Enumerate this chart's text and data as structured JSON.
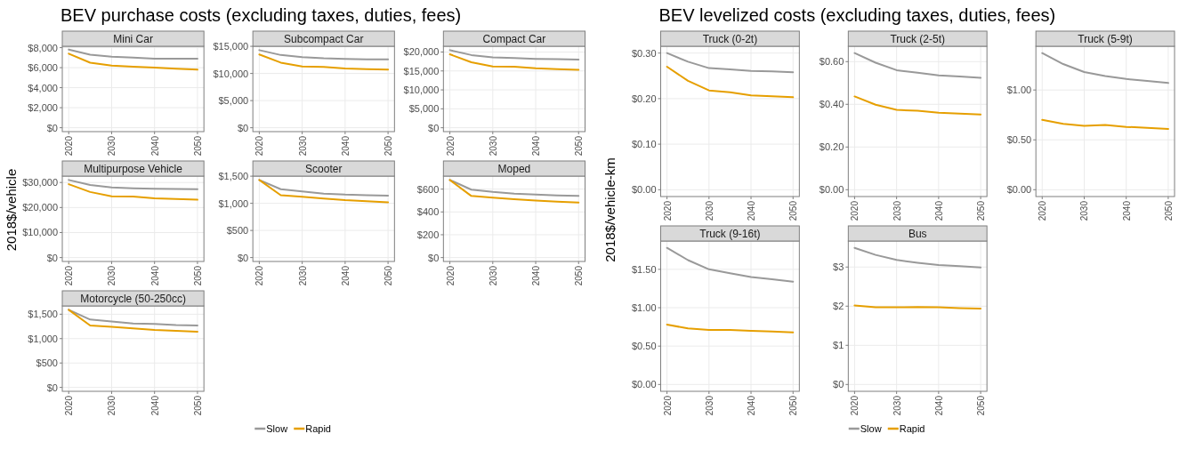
{
  "chart_data": [
    {
      "type": "line",
      "subtitle": "BEV purchase costs (excluding taxes, duties, fees)",
      "title": "Mini Car",
      "x": [
        2020,
        2025,
        2030,
        2035,
        2040,
        2045,
        2050
      ],
      "xlim": [
        2018.5,
        2051.5
      ],
      "xticks": [
        2020,
        2030,
        2040,
        2050
      ],
      "ylim": [
        -390,
        8140
      ],
      "yticks": [
        {
          "value": 0,
          "label": "$0"
        },
        {
          "value": 2000,
          "label": "$2,000"
        },
        {
          "value": 4000,
          "label": "$4,000"
        },
        {
          "value": 6000,
          "label": "$6,000"
        },
        {
          "value": 8000,
          "label": "$8,000"
        }
      ],
      "grid": true,
      "series": [
        {
          "color": "#999999",
          "values": [
            7800,
            7300,
            7100,
            7000,
            6900,
            6900,
            6900
          ]
        },
        {
          "color": "#e69f00",
          "values": [
            7400,
            6500,
            6200,
            6100,
            6000,
            5900,
            5800
          ]
        }
      ]
    },
    {
      "type": "line",
      "title": "Subcompact Car",
      "x": [
        2020,
        2025,
        2030,
        2035,
        2040,
        2045,
        2050
      ],
      "xlim": [
        2018.5,
        2051.5
      ],
      "xticks": [
        2020,
        2030,
        2040,
        2050
      ],
      "ylim": [
        -715,
        15015
      ],
      "yticks": [
        {
          "value": 0,
          "label": "$0"
        },
        {
          "value": 5000,
          "label": "$5,000"
        },
        {
          "value": 10000,
          "label": "$10,000"
        },
        {
          "value": 15000,
          "label": "$15,000"
        }
      ],
      "grid": true,
      "series": [
        {
          "color": "#999999",
          "values": [
            14300,
            13400,
            13000,
            12800,
            12700,
            12600,
            12600
          ]
        },
        {
          "color": "#e69f00",
          "values": [
            13500,
            12000,
            11300,
            11200,
            10900,
            10800,
            10700
          ]
        }
      ]
    },
    {
      "type": "line",
      "title": "Compact Car",
      "x": [
        2020,
        2025,
        2030,
        2035,
        2040,
        2045,
        2050
      ],
      "xlim": [
        2018.5,
        2051.5
      ],
      "xticks": [
        2020,
        2030,
        2040,
        2050
      ],
      "ylim": [
        -1025,
        21525
      ],
      "yticks": [
        {
          "value": 0,
          "label": "$0"
        },
        {
          "value": 5000,
          "label": "$5,000"
        },
        {
          "value": 10000,
          "label": "$10,000"
        },
        {
          "value": 15000,
          "label": "$15,000"
        },
        {
          "value": 20000,
          "label": "$20,000"
        }
      ],
      "grid": true,
      "series": [
        {
          "color": "#999999",
          "values": [
            20500,
            19200,
            18600,
            18400,
            18200,
            18100,
            18000
          ]
        },
        {
          "color": "#e69f00",
          "values": [
            19400,
            17300,
            16200,
            16100,
            15700,
            15500,
            15300
          ]
        }
      ]
    },
    {
      "type": "line",
      "title": "Multipurpose Vehicle",
      "ylabel": "2018$/vehicle",
      "x": [
        2020,
        2025,
        2030,
        2035,
        2040,
        2045,
        2050
      ],
      "xlim": [
        2018.5,
        2051.5
      ],
      "xticks": [
        2020,
        2030,
        2040,
        2050
      ],
      "ylim": [
        -1550,
        32550
      ],
      "yticks": [
        {
          "value": 0,
          "label": "$0"
        },
        {
          "value": 10000,
          "label": "$10,000"
        },
        {
          "value": 20000,
          "label": "$20,000"
        },
        {
          "value": 30000,
          "label": "$30,000"
        }
      ],
      "grid": true,
      "series": [
        {
          "color": "#999999",
          "values": [
            31000,
            29000,
            28000,
            27700,
            27500,
            27400,
            27300
          ]
        },
        {
          "color": "#e69f00",
          "values": [
            29300,
            26200,
            24500,
            24400,
            23700,
            23400,
            23100
          ]
        }
      ]
    },
    {
      "type": "line",
      "title": "Scooter",
      "x": [
        2020,
        2025,
        2030,
        2035,
        2040,
        2045,
        2050
      ],
      "xlim": [
        2018.5,
        2051.5
      ],
      "xticks": [
        2020,
        2030,
        2040,
        2050
      ],
      "ylim": [
        -72,
        1502
      ],
      "yticks": [
        {
          "value": 0,
          "label": "$0"
        },
        {
          "value": 500,
          "label": "$500"
        },
        {
          "value": 1000,
          "label": "$1,000"
        },
        {
          "value": 1500,
          "label": "$1,500"
        }
      ],
      "grid": true,
      "series": [
        {
          "color": "#999999",
          "values": [
            1430,
            1260,
            1220,
            1180,
            1160,
            1150,
            1140
          ]
        },
        {
          "color": "#e69f00",
          "values": [
            1430,
            1150,
            1120,
            1090,
            1060,
            1040,
            1020
          ]
        }
      ]
    },
    {
      "type": "line",
      "title": "Moped",
      "x": [
        2020,
        2025,
        2030,
        2035,
        2040,
        2045,
        2050
      ],
      "xlim": [
        2018.5,
        2051.5
      ],
      "xticks": [
        2020,
        2030,
        2040,
        2050
      ],
      "ylim": [
        -34,
        714
      ],
      "yticks": [
        {
          "value": 0,
          "label": "$0"
        },
        {
          "value": 200,
          "label": "$200"
        },
        {
          "value": 400,
          "label": "$400"
        },
        {
          "value": 600,
          "label": "$600"
        }
      ],
      "grid": true,
      "series": [
        {
          "color": "#999999",
          "values": [
            680,
            595,
            575,
            560,
            552,
            545,
            540
          ]
        },
        {
          "color": "#e69f00",
          "values": [
            680,
            540,
            525,
            512,
            500,
            490,
            482
          ]
        }
      ]
    },
    {
      "type": "line",
      "title": "Motorcycle (50-250cc)",
      "legend": "bottom",
      "x": [
        2020,
        2025,
        2030,
        2035,
        2040,
        2045,
        2050
      ],
      "xlim": [
        2018.5,
        2051.5
      ],
      "xticks": [
        2020,
        2030,
        2040,
        2050
      ],
      "ylim": [
        -80,
        1670
      ],
      "yticks": [
        {
          "value": 0,
          "label": "$0"
        },
        {
          "value": 500,
          "label": "$500"
        },
        {
          "value": 1000,
          "label": "$1,000"
        },
        {
          "value": 1500,
          "label": "$1,500"
        }
      ],
      "grid": true,
      "series": [
        {
          "name": "Slow",
          "color": "#999999",
          "values": [
            1590,
            1390,
            1350,
            1310,
            1300,
            1280,
            1270
          ]
        },
        {
          "name": "Rapid",
          "color": "#e69f00",
          "values": [
            1590,
            1270,
            1240,
            1210,
            1180,
            1160,
            1140
          ]
        }
      ]
    },
    {
      "type": "line",
      "subtitle": "BEV levelized costs (excluding taxes, duties, fees)",
      "title": "Truck (0-2t)",
      "ylabel": "2018$/vehicle-km",
      "x": [
        2020,
        2025,
        2030,
        2035,
        2040,
        2045,
        2050
      ],
      "xlim": [
        2018.5,
        2051.5
      ],
      "xticks": [
        2020,
        2030,
        2040,
        2050
      ],
      "ylim": [
        -0.015,
        0.315
      ],
      "yticks": [
        {
          "value": 0,
          "label": "$0.00"
        },
        {
          "value": 0.1,
          "label": "$0.10"
        },
        {
          "value": 0.2,
          "label": "$0.20"
        },
        {
          "value": 0.3,
          "label": "$0.30"
        }
      ],
      "grid": true,
      "series": [
        {
          "color": "#999999",
          "values": [
            0.3,
            0.281,
            0.267,
            0.264,
            0.261,
            0.26,
            0.258
          ]
        },
        {
          "color": "#e69f00",
          "values": [
            0.27,
            0.239,
            0.218,
            0.214,
            0.207,
            0.205,
            0.203
          ]
        }
      ]
    },
    {
      "type": "line",
      "title": "Truck (2-5t)",
      "x": [
        2020,
        2025,
        2030,
        2035,
        2040,
        2045,
        2050
      ],
      "xlim": [
        2018.5,
        2051.5
      ],
      "xticks": [
        2020,
        2030,
        2040,
        2050
      ],
      "ylim": [
        -0.032,
        0.672
      ],
      "yticks": [
        {
          "value": 0,
          "label": "$0.00"
        },
        {
          "value": 0.2,
          "label": "$0.20"
        },
        {
          "value": 0.4,
          "label": "$0.40"
        },
        {
          "value": 0.6,
          "label": "$0.60"
        }
      ],
      "grid": true,
      "series": [
        {
          "color": "#999999",
          "values": [
            0.64,
            0.595,
            0.56,
            0.548,
            0.536,
            0.53,
            0.524
          ]
        },
        {
          "color": "#e69f00",
          "values": [
            0.437,
            0.398,
            0.374,
            0.37,
            0.361,
            0.356,
            0.352
          ]
        }
      ]
    },
    {
      "type": "line",
      "title": "Truck (5-9t)",
      "x": [
        2020,
        2025,
        2030,
        2035,
        2040,
        2045,
        2050
      ],
      "xlim": [
        2018.5,
        2051.5
      ],
      "xticks": [
        2020,
        2030,
        2040,
        2050
      ],
      "ylim": [
        -0.0685,
        1.4385
      ],
      "yticks": [
        {
          "value": 0,
          "label": "$0.00"
        },
        {
          "value": 0.5,
          "label": "$0.50"
        },
        {
          "value": 1,
          "label": "$1.00"
        }
      ],
      "grid": true,
      "series": [
        {
          "color": "#999999",
          "values": [
            1.37,
            1.26,
            1.18,
            1.14,
            1.11,
            1.09,
            1.07
          ]
        },
        {
          "color": "#e69f00",
          "values": [
            0.7,
            0.66,
            0.64,
            0.65,
            0.63,
            0.62,
            0.61
          ]
        }
      ]
    },
    {
      "type": "line",
      "title": "Truck (9-16t)",
      "x": [
        2020,
        2025,
        2030,
        2035,
        2040,
        2045,
        2050
      ],
      "xlim": [
        2018.5,
        2051.5
      ],
      "xticks": [
        2020,
        2030,
        2040,
        2050
      ],
      "ylim": [
        -0.089,
        1.869
      ],
      "yticks": [
        {
          "value": 0,
          "label": "$0.00"
        },
        {
          "value": 0.5,
          "label": "$0.50"
        },
        {
          "value": 1,
          "label": "$1.00"
        },
        {
          "value": 1.5,
          "label": "$1.50"
        }
      ],
      "grid": true,
      "series": [
        {
          "color": "#999999",
          "values": [
            1.78,
            1.62,
            1.5,
            1.45,
            1.4,
            1.37,
            1.34
          ]
        },
        {
          "color": "#e69f00",
          "values": [
            0.78,
            0.73,
            0.71,
            0.71,
            0.7,
            0.69,
            0.68
          ]
        }
      ]
    },
    {
      "type": "line",
      "title": "Bus",
      "legend": "bottom",
      "x": [
        2020,
        2025,
        2030,
        2035,
        2040,
        2045,
        2050
      ],
      "xlim": [
        2018.5,
        2051.5
      ],
      "xticks": [
        2020,
        2030,
        2040,
        2050
      ],
      "ylim": [
        -0.1745,
        3.6645
      ],
      "yticks": [
        {
          "value": 0,
          "label": "$0"
        },
        {
          "value": 1,
          "label": "$1"
        },
        {
          "value": 2,
          "label": "$2"
        },
        {
          "value": 3,
          "label": "$3"
        }
      ],
      "grid": true,
      "series": [
        {
          "name": "Slow",
          "color": "#999999",
          "values": [
            3.49,
            3.31,
            3.18,
            3.11,
            3.05,
            3.02,
            2.99
          ]
        },
        {
          "name": "Rapid",
          "color": "#e69f00",
          "values": [
            2.02,
            1.97,
            1.97,
            1.98,
            1.97,
            1.95,
            1.94
          ]
        }
      ]
    }
  ]
}
